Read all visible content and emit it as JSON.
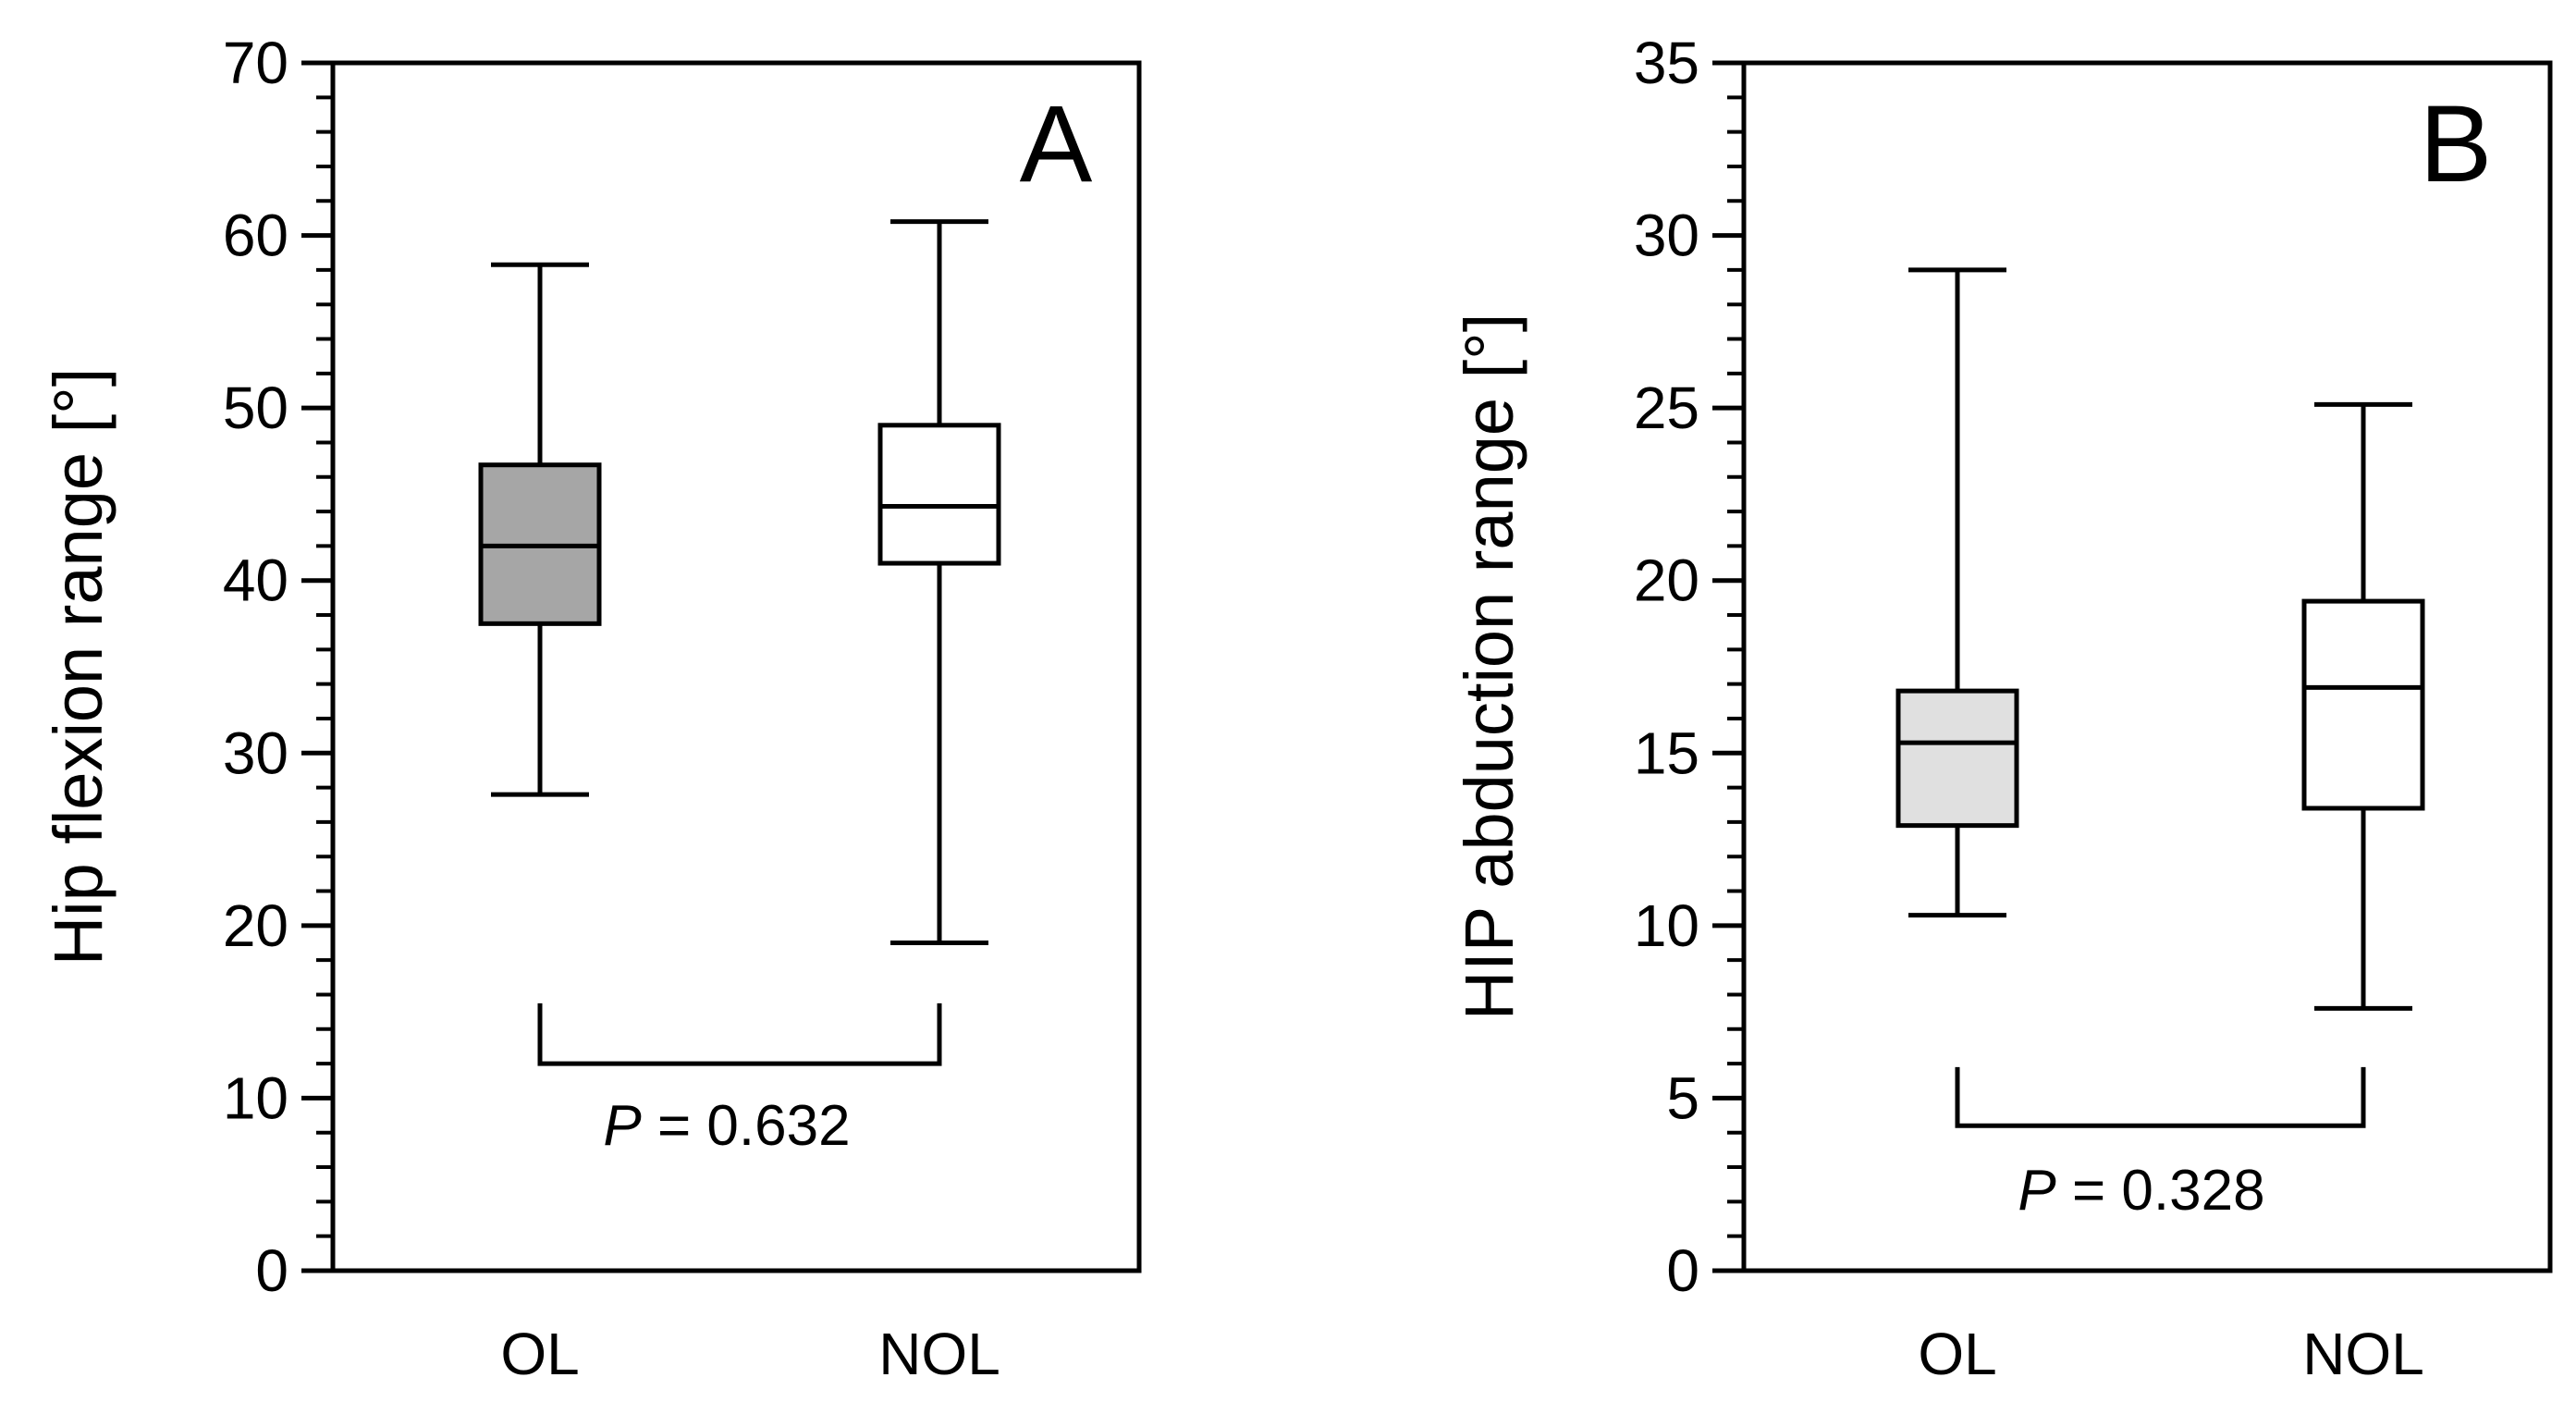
{
  "chart_data": [
    {
      "type": "box",
      "panel_label": "A",
      "ylabel": "Hip flexion range [°]",
      "ylim": [
        0,
        70
      ],
      "yticks": [
        0,
        10,
        20,
        30,
        40,
        50,
        60,
        70
      ],
      "minor_tick_step": 2,
      "categories": [
        "OL",
        "NOL"
      ],
      "boxes": [
        {
          "category": "OL",
          "whisker_low": 27.6,
          "q1": 37.5,
          "median": 42.0,
          "q3": 46.7,
          "whisker_high": 58.3,
          "fill": "#a6a6a6"
        },
        {
          "category": "NOL",
          "whisker_low": 19.0,
          "q1": 41.0,
          "median": 44.3,
          "q3": 49.0,
          "whisker_high": 60.8,
          "fill": "#ffffff"
        }
      ],
      "comparison": {
        "label_italic": "P",
        "label_rest": " = 0.632",
        "bracket_top": 15.5,
        "bracket_bottom": 12.0
      }
    },
    {
      "type": "box",
      "panel_label": "B",
      "ylabel": "HIP abduction range [°]",
      "ylim": [
        0,
        35
      ],
      "yticks": [
        0,
        5,
        10,
        15,
        20,
        25,
        30,
        35
      ],
      "minor_tick_step": 1,
      "categories": [
        "OL",
        "NOL"
      ],
      "boxes": [
        {
          "category": "OL",
          "whisker_low": 10.3,
          "q1": 12.9,
          "median": 15.3,
          "q3": 16.8,
          "whisker_high": 29.0,
          "fill": "#e0e0e0"
        },
        {
          "category": "NOL",
          "whisker_low": 7.6,
          "q1": 13.4,
          "median": 16.9,
          "q3": 19.4,
          "whisker_high": 25.1,
          "fill": "#ffffff"
        }
      ],
      "comparison": {
        "label_italic": "P",
        "label_rest": " = 0.328",
        "bracket_top": 5.9,
        "bracket_bottom": 4.2
      }
    }
  ]
}
